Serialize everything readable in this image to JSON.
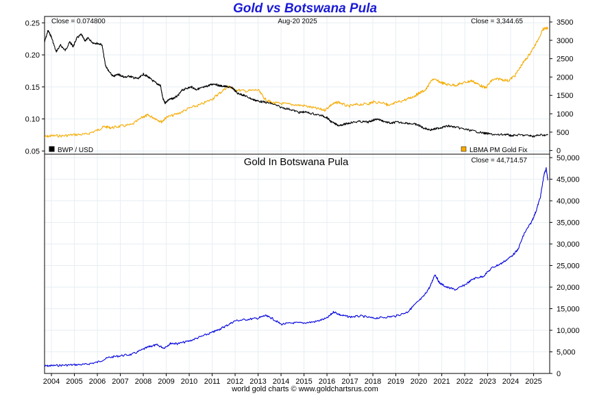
{
  "page": {
    "title": "Gold vs Botswana Pula",
    "footer": "world gold charts © www.goldchartsrus.com"
  },
  "colors": {
    "bwp": "#000000",
    "gold": "#f5aa00",
    "pula_gold": "#0000dd",
    "grid": "#e6eef3",
    "title": "#1a1ad6"
  },
  "chart_data": [
    {
      "type": "line",
      "title": "",
      "close_left": "Close = 0.074800",
      "date": "Aug-20  2025",
      "close_right": "Close = 3,344.65",
      "x_ticks": [
        "2004",
        "2005",
        "2006",
        "2007",
        "2008",
        "2009",
        "2010",
        "2011",
        "2012",
        "2013",
        "2014",
        "2015",
        "2016",
        "2017",
        "2018",
        "2019",
        "2020",
        "2021",
        "2022",
        "2023",
        "2024",
        "2025"
      ],
      "xlim": [
        2003.7,
        2025.7
      ],
      "left_axis": {
        "ticks": [
          "0.25",
          "0.20",
          "0.15",
          "0.10",
          "0.05"
        ],
        "tick_values": [
          0.25,
          0.2,
          0.15,
          0.1,
          0.05
        ],
        "ylim": [
          0.045,
          0.26
        ]
      },
      "right_axis": {
        "ticks": [
          "3500",
          "3000",
          "2500",
          "2000",
          "1500",
          "1000",
          "500",
          "0"
        ],
        "tick_values": [
          3500,
          3000,
          2500,
          2000,
          1500,
          1000,
          500,
          0
        ],
        "ylim": [
          -100,
          3650
        ]
      },
      "legend": {
        "position": "bottom",
        "left": "BWP / USD",
        "right": "LBMA PM Gold Fix"
      },
      "grid": true,
      "series": [
        {
          "name": "BWP / USD",
          "axis": "left",
          "color": "#000000",
          "x": [
            2003.7,
            2003.85,
            2004.0,
            2004.2,
            2004.4,
            2004.6,
            2004.8,
            2004.95,
            2005.1,
            2005.3,
            2005.45,
            2005.6,
            2005.8,
            2006.0,
            2006.2,
            2006.35,
            2006.5,
            2006.7,
            2006.9,
            2007.0,
            2007.2,
            2007.4,
            2007.6,
            2007.8,
            2008.0,
            2008.2,
            2008.4,
            2008.6,
            2008.75,
            2008.85,
            2008.95,
            2009.1,
            2009.3,
            2009.5,
            2009.7,
            2009.9,
            2010.1,
            2010.3,
            2010.5,
            2010.7,
            2010.9,
            2011.1,
            2011.3,
            2011.5,
            2011.7,
            2011.9,
            2012.1,
            2012.3,
            2012.5,
            2012.8,
            2013.0,
            2013.3,
            2013.6,
            2014.0,
            2014.4,
            2014.8,
            2015.0,
            2015.4,
            2015.8,
            2016.0,
            2016.2,
            2016.5,
            2016.8,
            2017.0,
            2017.4,
            2017.8,
            2018.0,
            2018.2,
            2018.5,
            2018.8,
            2019.0,
            2019.4,
            2019.8,
            2020.0,
            2020.2,
            2020.5,
            2020.8,
            2021.0,
            2021.3,
            2021.6,
            2022.0,
            2022.4,
            2022.8,
            2023.0,
            2023.4,
            2023.8,
            2024.0,
            2024.4,
            2024.8,
            2025.0,
            2025.3,
            2025.62
          ],
          "y": [
            0.22,
            0.238,
            0.228,
            0.205,
            0.215,
            0.207,
            0.22,
            0.213,
            0.226,
            0.232,
            0.222,
            0.226,
            0.219,
            0.218,
            0.216,
            0.184,
            0.174,
            0.166,
            0.17,
            0.168,
            0.165,
            0.167,
            0.164,
            0.163,
            0.17,
            0.166,
            0.16,
            0.155,
            0.152,
            0.132,
            0.125,
            0.13,
            0.132,
            0.136,
            0.145,
            0.148,
            0.15,
            0.146,
            0.148,
            0.15,
            0.153,
            0.155,
            0.152,
            0.151,
            0.15,
            0.148,
            0.14,
            0.138,
            0.135,
            0.13,
            0.128,
            0.126,
            0.124,
            0.118,
            0.115,
            0.11,
            0.111,
            0.108,
            0.105,
            0.102,
            0.095,
            0.09,
            0.092,
            0.094,
            0.096,
            0.095,
            0.098,
            0.1,
            0.096,
            0.093,
            0.095,
            0.094,
            0.092,
            0.09,
            0.086,
            0.083,
            0.085,
            0.087,
            0.089,
            0.087,
            0.084,
            0.081,
            0.078,
            0.077,
            0.075,
            0.076,
            0.074,
            0.075,
            0.074,
            0.073,
            0.075,
            0.0748
          ]
        },
        {
          "name": "LBMA PM Gold Fix",
          "axis": "right",
          "color": "#f5aa00",
          "x": [
            2003.7,
            2004.0,
            2004.5,
            2005.0,
            2005.5,
            2006.0,
            2006.3,
            2006.6,
            2007.0,
            2007.5,
            2008.0,
            2008.2,
            2008.5,
            2008.8,
            2009.0,
            2009.5,
            2010.0,
            2010.5,
            2011.0,
            2011.3,
            2011.7,
            2012.0,
            2012.5,
            2013.0,
            2013.3,
            2013.6,
            2014.0,
            2014.5,
            2015.0,
            2015.5,
            2015.9,
            2016.2,
            2016.5,
            2016.9,
            2017.3,
            2017.8,
            2018.0,
            2018.5,
            2018.7,
            2019.0,
            2019.5,
            2019.8,
            2020.0,
            2020.3,
            2020.6,
            2020.9,
            2021.2,
            2021.6,
            2022.0,
            2022.3,
            2022.6,
            2022.9,
            2023.2,
            2023.5,
            2023.9,
            2024.2,
            2024.5,
            2024.8,
            2025.1,
            2025.4,
            2025.62
          ],
          "y": [
            370,
            400,
            400,
            430,
            440,
            550,
            650,
            620,
            660,
            700,
            920,
            960,
            880,
            780,
            900,
            1000,
            1150,
            1250,
            1400,
            1550,
            1750,
            1650,
            1620,
            1650,
            1400,
            1300,
            1280,
            1250,
            1220,
            1150,
            1100,
            1250,
            1320,
            1200,
            1250,
            1270,
            1320,
            1300,
            1210,
            1300,
            1400,
            1480,
            1560,
            1650,
            1950,
            1870,
            1800,
            1780,
            1850,
            1900,
            1800,
            1700,
            1920,
            1950,
            1900,
            2050,
            2350,
            2600,
            2900,
            3300,
            3344.65
          ]
        }
      ]
    },
    {
      "type": "line",
      "title": "Gold In Botswana Pula",
      "close_right": "Close = 44,714.57",
      "x_ticks": [
        "2004",
        "2005",
        "2006",
        "2007",
        "2008",
        "2009",
        "2010",
        "2011",
        "2012",
        "2013",
        "2014",
        "2015",
        "2016",
        "2017",
        "2018",
        "2019",
        "2020",
        "2021",
        "2022",
        "2023",
        "2024",
        "2025"
      ],
      "xlim": [
        2003.7,
        2025.7
      ],
      "right_axis": {
        "ticks": [
          "50,000",
          "45,000",
          "40,000",
          "35,000",
          "30,000",
          "25,000",
          "20,000",
          "15,000",
          "10,000",
          "5,000",
          "0"
        ],
        "tick_values": [
          50000,
          45000,
          40000,
          35000,
          30000,
          25000,
          20000,
          15000,
          10000,
          5000,
          0
        ],
        "ylim": [
          0,
          50800
        ]
      },
      "grid": true,
      "series": [
        {
          "name": "Gold In Botswana Pula",
          "axis": "right",
          "color": "#0000dd",
          "x": [
            2003.7,
            2004.0,
            2004.5,
            2005.0,
            2005.5,
            2006.0,
            2006.5,
            2007.0,
            2007.5,
            2008.0,
            2008.3,
            2008.6,
            2008.9,
            2009.2,
            2009.5,
            2010.0,
            2010.5,
            2011.0,
            2011.3,
            2011.6,
            2012.0,
            2012.5,
            2013.0,
            2013.3,
            2013.6,
            2014.0,
            2014.5,
            2015.0,
            2015.5,
            2016.0,
            2016.3,
            2016.6,
            2017.0,
            2017.5,
            2018.0,
            2018.5,
            2019.0,
            2019.5,
            2019.8,
            2020.2,
            2020.5,
            2020.7,
            2020.9,
            2021.2,
            2021.6,
            2022.0,
            2022.4,
            2022.8,
            2023.2,
            2023.6,
            2024.0,
            2024.3,
            2024.6,
            2024.9,
            2025.1,
            2025.3,
            2025.45,
            2025.55,
            2025.62
          ],
          "y": [
            1700,
            1800,
            1900,
            2000,
            2100,
            2600,
            3700,
            4100,
            4400,
            5600,
            6300,
            6600,
            5900,
            7000,
            6900,
            7500,
            8500,
            9500,
            10200,
            11000,
            12200,
            12500,
            12800,
            13400,
            12800,
            11400,
            11700,
            11700,
            12000,
            12800,
            14300,
            13500,
            13100,
            13300,
            12800,
            13000,
            13300,
            14200,
            15800,
            17800,
            20200,
            23000,
            21000,
            20000,
            19400,
            20500,
            22000,
            22500,
            24500,
            25500,
            27000,
            28500,
            32500,
            35000,
            37500,
            41000,
            46000,
            47500,
            44714.57
          ]
        }
      ]
    }
  ]
}
